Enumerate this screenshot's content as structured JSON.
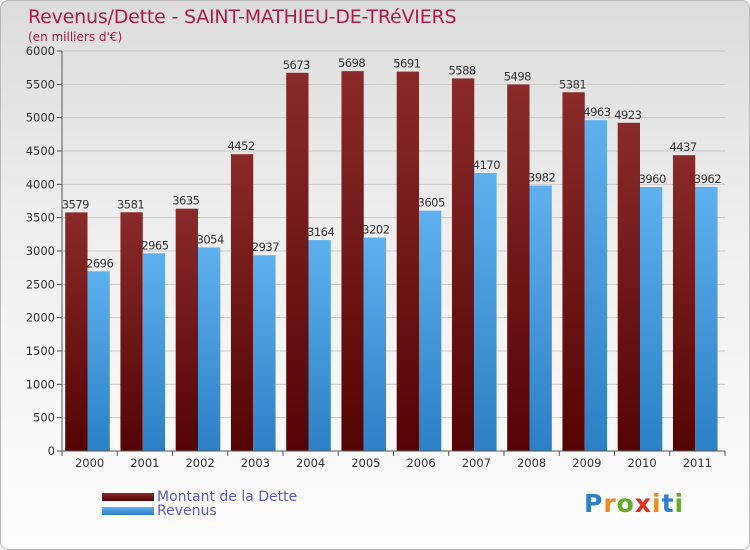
{
  "title": "Revenus/Dette - SAINT-MATHIEU-DE-TRéVIERS",
  "subtitle": "(en milliers d'€)",
  "brand": {
    "text": "Proxiti",
    "letters": [
      "P",
      "r",
      "o",
      "x",
      "i",
      "t",
      "i"
    ],
    "colors": [
      "#2f7fce",
      "#f08a1c",
      "#6aaa2a",
      "#e0301e",
      "#f08a1c",
      "#2f7fce",
      "#6aaa2a"
    ]
  },
  "colors": {
    "series_1": "#7a1f1f",
    "series_2": "#4aa3e8",
    "gridline": "#c9c9c9"
  },
  "chart_data": {
    "type": "bar",
    "categories": [
      "2000",
      "2001",
      "2002",
      "2003",
      "2004",
      "2005",
      "2006",
      "2007",
      "2008",
      "2009",
      "2010",
      "2011"
    ],
    "series": [
      {
        "name": "Montant de la Dette",
        "values": [
          3579,
          3581,
          3635,
          4452,
          5673,
          5698,
          5691,
          5588,
          5498,
          5381,
          4923,
          4437
        ]
      },
      {
        "name": "Revenus",
        "values": [
          2696,
          2965,
          3054,
          2937,
          3164,
          3202,
          3605,
          4170,
          3982,
          4963,
          3960,
          3962
        ]
      }
    ],
    "ylim": [
      0,
      6000
    ],
    "yticks": [
      0,
      500,
      1000,
      1500,
      2000,
      2500,
      3000,
      3500,
      4000,
      4500,
      5000,
      5500,
      6000
    ],
    "grid": true,
    "legend_position": "bottom-left"
  }
}
